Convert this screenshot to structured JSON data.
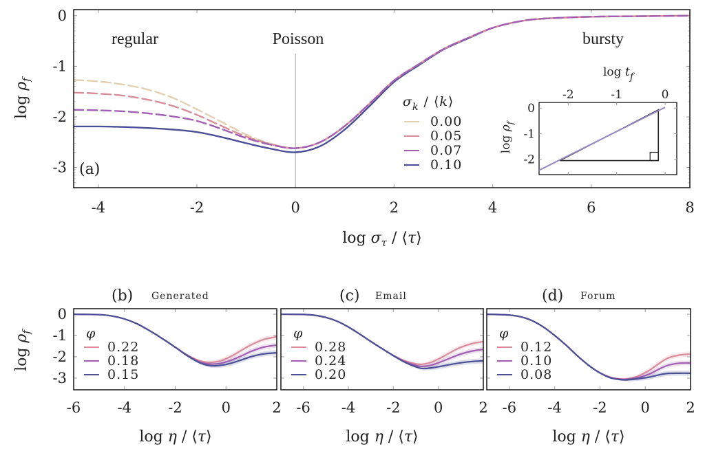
{
  "chart_data": [
    {
      "id": "a",
      "type": "line",
      "panel_label": "(a)",
      "xlabel": "log σ_τ / ⟨τ⟩",
      "ylabel": "log ρ_f",
      "xlim": [
        -4.5,
        8
      ],
      "ylim": [
        -3.4,
        0.12
      ],
      "xticks": [
        -4,
        -2,
        0,
        2,
        4,
        6,
        8
      ],
      "yticks": [
        0,
        -1,
        -2,
        -3
      ],
      "reference_line_x": 0,
      "annotations": [
        {
          "text": "regular",
          "x": -3.4,
          "y": -0.45
        },
        {
          "text": "Poisson",
          "x": 0,
          "y": -0.45
        },
        {
          "text": "bursty",
          "x": 6.5,
          "y": -0.45
        }
      ],
      "legend": {
        "title": "σ_k / ⟨k⟩",
        "placement": "center-right"
      },
      "series": [
        {
          "name": "0.00",
          "color": "#e2d0b0",
          "dashed": true,
          "x": [
            -4.5,
            -4,
            -3.5,
            -3,
            -2.5,
            -2,
            -1.5,
            -1,
            -0.5,
            0,
            0.5,
            1,
            1.5,
            2,
            2.5,
            3,
            3.5,
            4,
            4.5,
            5,
            6,
            7,
            8
          ],
          "y": [
            -1.27,
            -1.3,
            -1.36,
            -1.46,
            -1.62,
            -1.85,
            -2.1,
            -2.35,
            -2.53,
            -2.62,
            -2.5,
            -2.18,
            -1.74,
            -1.28,
            -0.96,
            -0.66,
            -0.44,
            -0.24,
            -0.12,
            -0.06,
            -0.02,
            -0.01,
            0
          ]
        },
        {
          "name": "0.05",
          "color": "#d98c9a",
          "dashed": true,
          "x": [
            -4.5,
            -4,
            -3.5,
            -3,
            -2.5,
            -2,
            -1.5,
            -1,
            -0.5,
            0,
            0.5,
            1,
            1.5,
            2,
            2.5,
            3,
            3.5,
            4,
            4.5,
            5,
            6,
            7,
            8
          ],
          "y": [
            -1.52,
            -1.54,
            -1.58,
            -1.66,
            -1.78,
            -1.96,
            -2.18,
            -2.39,
            -2.54,
            -2.62,
            -2.5,
            -2.18,
            -1.74,
            -1.28,
            -0.96,
            -0.66,
            -0.44,
            -0.24,
            -0.12,
            -0.06,
            -0.02,
            -0.01,
            0
          ]
        },
        {
          "name": "0.07",
          "color": "#a25eb2",
          "dashed": true,
          "x": [
            -4.5,
            -4,
            -3.5,
            -3,
            -2.5,
            -2,
            -1.5,
            -1,
            -0.5,
            0,
            0.5,
            1,
            1.5,
            2,
            2.5,
            3,
            3.5,
            4,
            4.5,
            5,
            6,
            7,
            8
          ],
          "y": [
            -1.86,
            -1.87,
            -1.89,
            -1.93,
            -1.99,
            -2.08,
            -2.24,
            -2.42,
            -2.55,
            -2.62,
            -2.5,
            -2.18,
            -1.74,
            -1.28,
            -0.96,
            -0.66,
            -0.44,
            -0.24,
            -0.12,
            -0.06,
            -0.02,
            -0.01,
            0
          ]
        },
        {
          "name": "0.10",
          "color": "#4a4f96",
          "dashed": false,
          "x": [
            -4.5,
            -4,
            -3.5,
            -3,
            -2.5,
            -2,
            -1.5,
            -1,
            -0.5,
            0,
            0.5,
            1,
            1.5,
            2,
            2.5,
            3,
            3.5,
            4,
            4.5,
            5,
            6,
            7,
            8
          ],
          "y": [
            -2.19,
            -2.19,
            -2.2,
            -2.22,
            -2.25,
            -2.3,
            -2.4,
            -2.52,
            -2.63,
            -2.7,
            -2.58,
            -2.25,
            -1.79,
            -1.31,
            -0.98,
            -0.67,
            -0.45,
            -0.24,
            -0.12,
            -0.06,
            -0.02,
            -0.01,
            0
          ]
        }
      ],
      "inset": {
        "type": "line",
        "xlabel": "log t_f",
        "ylabel": "log ρ_f",
        "xlim": [
          -2.6,
          0.24
        ],
        "ylim": [
          -2.6,
          0.22
        ],
        "xticks": [
          -2,
          -1,
          0
        ],
        "yticks": [
          0,
          -1,
          -2
        ],
        "line": {
          "x": [
            -2.6,
            0
          ],
          "y": [
            -2.43,
            0.03
          ],
          "color": "#9a88c4"
        },
        "slope_triangle": {
          "x": [
            -2.17,
            -0.14,
            -0.14
          ],
          "y": [
            -2.05,
            -2.05,
            -0.07
          ]
        }
      }
    },
    {
      "id": "b",
      "type": "line",
      "panel_label": "(b)",
      "title": "Generated",
      "xlabel": "log η / ⟨τ⟩",
      "ylabel": "log ρ_f",
      "xlim": [
        -6,
        2
      ],
      "ylim": [
        -3.55,
        0.26
      ],
      "xticks": [
        -6,
        -4,
        -2,
        0,
        2
      ],
      "yticks": [
        0,
        -1,
        -2,
        -3
      ],
      "legend": {
        "title": "φ",
        "placement": "center-left"
      },
      "series": [
        {
          "name": "0.22",
          "color": "#d98c9a",
          "x": [
            -6,
            -5,
            -4.5,
            -4,
            -3.5,
            -3,
            -2.5,
            -2,
            -1.5,
            -1,
            -0.6,
            -0.2,
            0.2,
            0.6,
            1,
            1.5,
            2
          ],
          "y": [
            0,
            -0.02,
            -0.08,
            -0.22,
            -0.45,
            -0.78,
            -1.15,
            -1.55,
            -1.93,
            -2.2,
            -2.26,
            -2.18,
            -1.98,
            -1.7,
            -1.43,
            -1.18,
            -1.06
          ]
        },
        {
          "name": "0.18",
          "color": "#a25eb2",
          "x": [
            -6,
            -5,
            -4.5,
            -4,
            -3.5,
            -3,
            -2.5,
            -2,
            -1.5,
            -1,
            -0.6,
            -0.2,
            0.2,
            0.6,
            1,
            1.5,
            2
          ],
          "y": [
            0,
            -0.02,
            -0.08,
            -0.22,
            -0.45,
            -0.78,
            -1.15,
            -1.55,
            -1.95,
            -2.26,
            -2.34,
            -2.3,
            -2.16,
            -1.96,
            -1.74,
            -1.54,
            -1.45
          ]
        },
        {
          "name": "0.15",
          "color": "#4a4f96",
          "x": [
            -6,
            -5,
            -4.5,
            -4,
            -3.5,
            -3,
            -2.5,
            -2,
            -1.5,
            -1,
            -0.6,
            -0.2,
            0.2,
            0.6,
            1,
            1.5,
            2
          ],
          "y": [
            0,
            -0.02,
            -0.08,
            -0.22,
            -0.45,
            -0.78,
            -1.15,
            -1.55,
            -1.97,
            -2.3,
            -2.42,
            -2.4,
            -2.3,
            -2.15,
            -1.99,
            -1.86,
            -1.81
          ]
        }
      ]
    },
    {
      "id": "c",
      "type": "line",
      "panel_label": "(c)",
      "title": "Email",
      "xlabel": "log η / ⟨τ⟩",
      "ylabel": "",
      "xlim": [
        -7,
        2
      ],
      "ylim": [
        -3.55,
        0.26
      ],
      "xticks": [
        -6,
        -4,
        -2,
        0,
        2
      ],
      "yticks": [
        0,
        -1,
        -2,
        -3
      ],
      "legend": {
        "title": "φ",
        "placement": "center-left"
      },
      "series": [
        {
          "name": "0.28",
          "color": "#d98c9a",
          "x": [
            -7,
            -6,
            -5.5,
            -5,
            -4.5,
            -4,
            -3.5,
            -3,
            -2.5,
            -2,
            -1.5,
            -1,
            -0.7,
            -0.3,
            0.2,
            0.6,
            1,
            1.5,
            2
          ],
          "y": [
            0,
            -0.01,
            -0.05,
            -0.15,
            -0.33,
            -0.6,
            -0.93,
            -1.28,
            -1.62,
            -1.93,
            -2.18,
            -2.33,
            -2.35,
            -2.25,
            -2.0,
            -1.76,
            -1.55,
            -1.38,
            -1.29
          ]
        },
        {
          "name": "0.24",
          "color": "#a25eb2",
          "x": [
            -7,
            -6,
            -5.5,
            -5,
            -4.5,
            -4,
            -3.5,
            -3,
            -2.5,
            -2,
            -1.5,
            -1,
            -0.7,
            -0.3,
            0.2,
            0.6,
            1,
            1.5,
            2
          ],
          "y": [
            0,
            -0.01,
            -0.05,
            -0.15,
            -0.33,
            -0.6,
            -0.93,
            -1.28,
            -1.62,
            -1.94,
            -2.22,
            -2.4,
            -2.45,
            -2.39,
            -2.2,
            -2.03,
            -1.87,
            -1.73,
            -1.65
          ]
        },
        {
          "name": "0.20",
          "color": "#4a4f96",
          "x": [
            -7,
            -6,
            -5.5,
            -5,
            -4.5,
            -4,
            -3.5,
            -3,
            -2.5,
            -2,
            -1.5,
            -1,
            -0.7,
            -0.3,
            0.2,
            0.6,
            1,
            1.5,
            2
          ],
          "y": [
            0,
            -0.01,
            -0.05,
            -0.15,
            -0.33,
            -0.6,
            -0.93,
            -1.28,
            -1.62,
            -1.95,
            -2.25,
            -2.47,
            -2.55,
            -2.52,
            -2.43,
            -2.35,
            -2.28,
            -2.22,
            -2.19
          ]
        }
      ]
    },
    {
      "id": "d",
      "type": "line",
      "panel_label": "(d)",
      "title": "Forum",
      "xlabel": "log η / ⟨τ⟩",
      "ylabel": "",
      "xlim": [
        -7,
        2
      ],
      "ylim": [
        -3.55,
        0.26
      ],
      "xticks": [
        -6,
        -4,
        -2,
        0,
        2
      ],
      "yticks": [
        0,
        -1,
        -2,
        -3
      ],
      "legend": {
        "title": "φ",
        "placement": "center-left"
      },
      "series": [
        {
          "name": "0.12",
          "color": "#d98c9a",
          "x": [
            -7,
            -6,
            -5.5,
            -5,
            -4.5,
            -4,
            -3.5,
            -3,
            -2.5,
            -2,
            -1.5,
            -1,
            -0.7,
            -0.3,
            0.2,
            0.6,
            1,
            1.5,
            2
          ],
          "y": [
            0,
            -0.04,
            -0.12,
            -0.3,
            -0.6,
            -1.0,
            -1.45,
            -1.95,
            -2.4,
            -2.75,
            -2.97,
            -3.05,
            -3.02,
            -2.9,
            -2.62,
            -2.32,
            -2.06,
            -1.92,
            -1.87
          ]
        },
        {
          "name": "0.10",
          "color": "#a25eb2",
          "x": [
            -7,
            -6,
            -5.5,
            -5,
            -4.5,
            -4,
            -3.5,
            -3,
            -2.5,
            -2,
            -1.5,
            -1,
            -0.7,
            -0.3,
            0.2,
            0.6,
            1,
            1.5,
            2
          ],
          "y": [
            0,
            -0.04,
            -0.12,
            -0.3,
            -0.6,
            -1.0,
            -1.45,
            -1.95,
            -2.4,
            -2.75,
            -2.98,
            -3.06,
            -3.05,
            -2.98,
            -2.8,
            -2.58,
            -2.4,
            -2.3,
            -2.29
          ]
        },
        {
          "name": "0.08",
          "color": "#4a4f96",
          "x": [
            -7,
            -6,
            -5.5,
            -5,
            -4.5,
            -4,
            -3.5,
            -3,
            -2.5,
            -2,
            -1.5,
            -1,
            -0.7,
            -0.3,
            0.2,
            0.6,
            1,
            1.5,
            2
          ],
          "y": [
            0,
            -0.04,
            -0.12,
            -0.3,
            -0.6,
            -1.0,
            -1.45,
            -1.95,
            -2.4,
            -2.76,
            -3.0,
            -3.08,
            -3.07,
            -3.03,
            -2.95,
            -2.85,
            -2.78,
            -2.77,
            -2.77
          ]
        }
      ]
    }
  ]
}
